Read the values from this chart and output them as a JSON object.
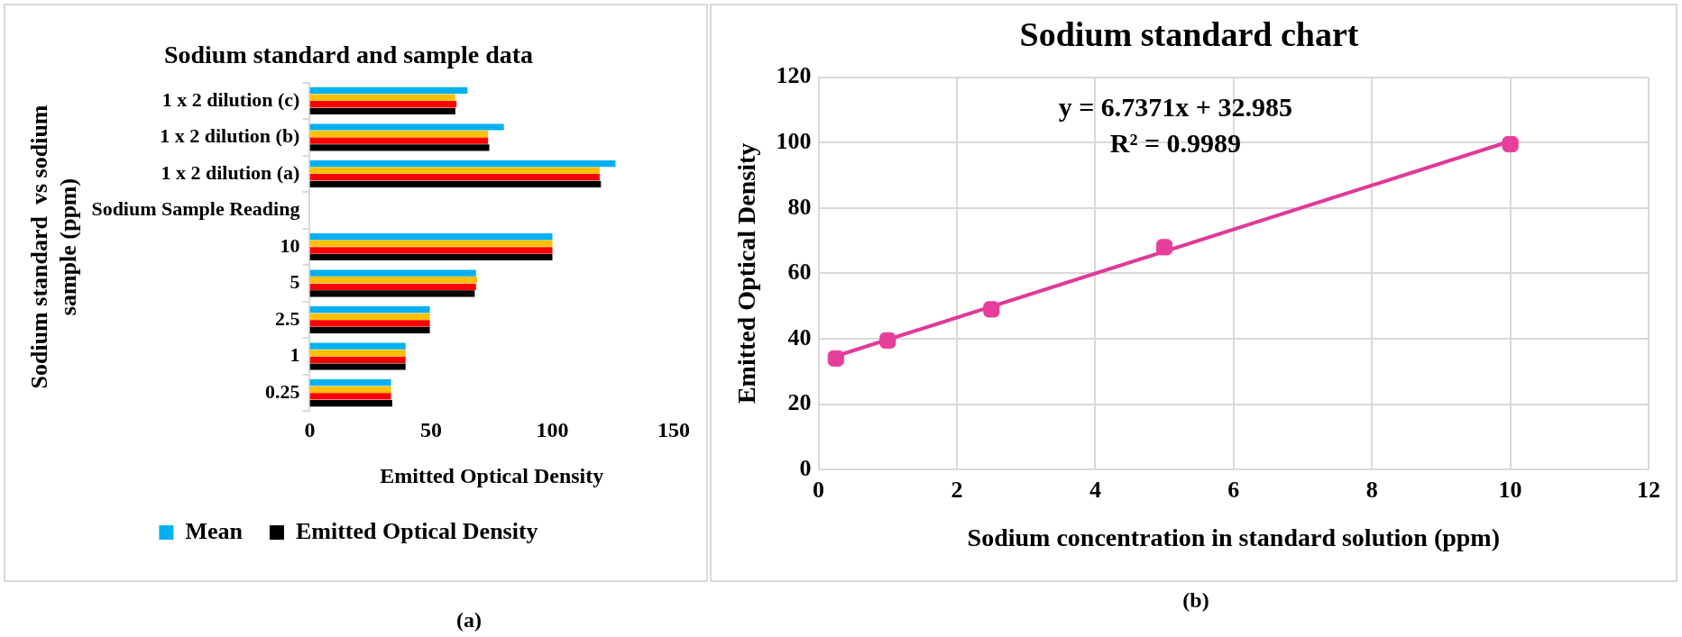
{
  "chart_data": [
    {
      "type": "bar",
      "orientation": "horizontal",
      "title": "Sodium standard and sample data",
      "xlabel": "Emitted Optical Density",
      "ylabel": "Sodium standard  vs sodium sample (ppm)",
      "categories": [
        "1 x 2 dilution (c)",
        "1 x 2 dilution (b)",
        "1 x 2 dilution (a)",
        "Sodium Sample Reading",
        "10",
        "5",
        "2.5",
        "1",
        "0.25"
      ],
      "series": [
        {
          "name": "Mean",
          "color": "#00b0f0",
          "values": [
            65,
            80,
            126,
            null,
            100,
            68.5,
            49.5,
            39.5,
            33.5
          ]
        },
        {
          "color": "#ffc000",
          "values": [
            60,
            73.5,
            119.5,
            null,
            100,
            69,
            49.5,
            39.5,
            33.5
          ]
        },
        {
          "color": "#ff0000",
          "values": [
            60.5,
            73.5,
            119.5,
            null,
            100,
            68.5,
            49.5,
            39.5,
            33.5
          ]
        },
        {
          "name": "Emitted Optical Density",
          "color": "#000000",
          "values": [
            60,
            74,
            120,
            null,
            100,
            68,
            49.5,
            39.5,
            34
          ]
        }
      ],
      "xlim": [
        0,
        150
      ],
      "xticks": [
        0,
        50,
        100,
        150
      ],
      "grid": false,
      "legend": "bottom",
      "annotations": [
        "(a)"
      ]
    },
    {
      "type": "scatter",
      "title": "Sodium standard chart",
      "xlabel": "Sodium concentration in standard solution (ppm)",
      "ylabel": "Emitted Optical Density",
      "series": [
        {
          "color": "#e83e9b",
          "x": [
            0.25,
            1,
            2.5,
            5,
            10
          ],
          "values": [
            34,
            39.5,
            49,
            68,
            99.5
          ],
          "marker": "square"
        },
        {
          "type": "line",
          "color": "#e0399a",
          "x": [
            0.25,
            10
          ],
          "values": [
            34.7,
            100.4
          ],
          "marker": "none",
          "line_style": "solid"
        }
      ],
      "xlim": [
        0,
        12
      ],
      "xticks": [
        0,
        2,
        4,
        6,
        8,
        10,
        12
      ],
      "ylim": [
        0,
        120
      ],
      "yticks": [
        0,
        20,
        40,
        60,
        80,
        100,
        120
      ],
      "grid": true,
      "annotations": [
        "y = 6.7371x + 32.985",
        "R² = 0.9989",
        "(b)"
      ]
    }
  ]
}
